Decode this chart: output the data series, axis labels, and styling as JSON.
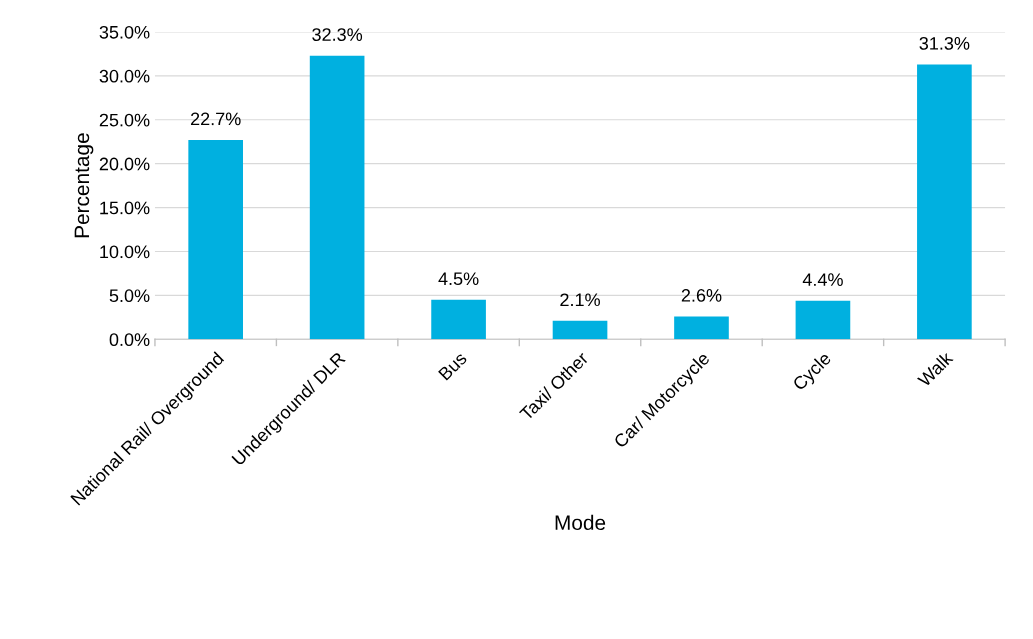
{
  "chart_data": {
    "type": "bar",
    "xlabel": "Mode",
    "ylabel": "Percentage",
    "categories": [
      "National Rail/ Overground",
      "Underground/ DLR",
      "Bus",
      "Taxi/ Other",
      "Car/ Motorcycle",
      "Cycle",
      "Walk"
    ],
    "values": [
      22.7,
      32.3,
      4.5,
      2.1,
      2.6,
      4.4,
      31.3
    ],
    "value_labels": [
      "22.7%",
      "32.3%",
      "4.5%",
      "2.1%",
      "2.6%",
      "4.4%",
      "31.3%"
    ],
    "color": "#00b0e0",
    "ylim": [
      0,
      35
    ],
    "yticks": [
      {
        "value": 0,
        "label": "0.0%"
      },
      {
        "value": 5,
        "label": "5.0%"
      },
      {
        "value": 10,
        "label": "10.0%"
      },
      {
        "value": 15,
        "label": "15.0%"
      },
      {
        "value": 20,
        "label": "20.0%"
      },
      {
        "value": 25,
        "label": "25.0%"
      },
      {
        "value": 30,
        "label": "30.0%"
      },
      {
        "value": 35,
        "label": "35.0%"
      }
    ],
    "grid": "y",
    "legend": false
  }
}
